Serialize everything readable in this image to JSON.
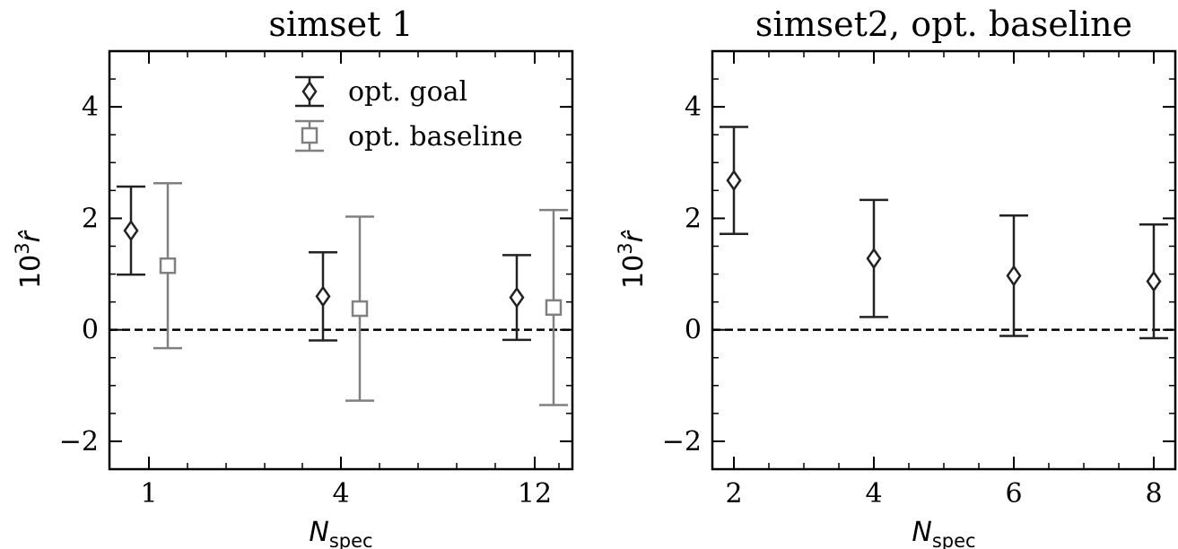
{
  "chart_data": [
    {
      "type": "scatter",
      "title": "simset 1",
      "xlabel": {
        "main": "N",
        "sub": "spec"
      },
      "ylabel": {
        "base": "10",
        "sup": "3",
        "sym": "r̂"
      },
      "x_ticks": [
        "1",
        "4",
        "12"
      ],
      "ylim": [
        -2.5,
        5
      ],
      "y_ticks": [
        -2,
        0,
        2,
        4
      ],
      "reference_line": 0,
      "legend": {
        "position": "upper-center"
      },
      "series": [
        {
          "name": "opt. goal",
          "marker": "diamond",
          "color": "#222222",
          "points": [
            {
              "x": "1",
              "y": 1.78,
              "err": 0.79
            },
            {
              "x": "4",
              "y": 0.6,
              "err": 0.79
            },
            {
              "x": "12",
              "y": 0.58,
              "err": 0.76
            }
          ]
        },
        {
          "name": "opt. baseline",
          "marker": "square",
          "color": "#808080",
          "points": [
            {
              "x": "1",
              "y": 1.15,
              "err": 1.48
            },
            {
              "x": "4",
              "y": 0.38,
              "err": 1.65
            },
            {
              "x": "12",
              "y": 0.4,
              "err": 1.75
            }
          ]
        }
      ]
    },
    {
      "type": "scatter",
      "title": "simset2, opt. baseline",
      "xlabel": {
        "main": "N",
        "sub": "spec"
      },
      "ylabel": {
        "base": "10",
        "sup": "3",
        "sym": "r̂"
      },
      "x_ticks": [
        "2",
        "4",
        "6",
        "8"
      ],
      "ylim": [
        -2.5,
        5
      ],
      "y_ticks": [
        -2,
        0,
        2,
        4
      ],
      "reference_line": 0,
      "series": [
        {
          "marker": "diamond",
          "color": "#222222",
          "points": [
            {
              "x": "2",
              "y": 2.68,
              "err": 0.96
            },
            {
              "x": "4",
              "y": 1.28,
              "err": 1.05
            },
            {
              "x": "6",
              "y": 0.97,
              "err": 1.08
            },
            {
              "x": "8",
              "y": 0.87,
              "err": 1.02
            }
          ]
        }
      ]
    }
  ]
}
